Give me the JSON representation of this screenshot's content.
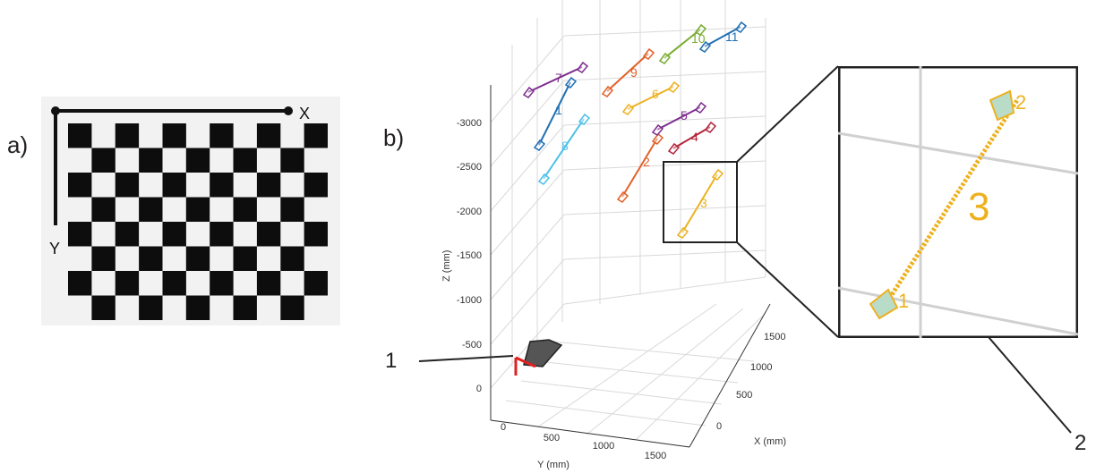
{
  "panel_a": {
    "label": "a)",
    "axis_x_label": "X",
    "axis_y_label": "Y",
    "board": {
      "rows": 8,
      "cols": 11,
      "first_square_dark": true
    }
  },
  "panel_b": {
    "label": "b)",
    "axes": {
      "z_label": "Z (mm)",
      "y_label": "Y (mm)",
      "x_label": "X (mm)",
      "z_ticks": [
        "-3000",
        "-2500",
        "-2000",
        "-1500",
        "-1000",
        "-500",
        "0"
      ],
      "y_ticks": [
        "0",
        "500",
        "1000",
        "1500"
      ],
      "x_ticks": [
        "0",
        "500",
        "1000",
        "1500"
      ]
    },
    "cameras": [
      {
        "id": "1",
        "color": "#1f6fb4"
      },
      {
        "id": "2",
        "color": "#e2612a"
      },
      {
        "id": "3",
        "color": "#edb11f"
      },
      {
        "id": "4",
        "color": "#b3243a"
      },
      {
        "id": "5",
        "color": "#7e2f8e"
      },
      {
        "id": "6",
        "color": "#edb11f"
      },
      {
        "id": "7",
        "color": "#7e2f8e"
      },
      {
        "id": "8",
        "color": "#4cc0e8"
      },
      {
        "id": "9",
        "color": "#e2612a"
      },
      {
        "id": "10",
        "color": "#77ac30"
      },
      {
        "id": "11",
        "color": "#1f6fb4"
      }
    ],
    "zoom": {
      "camera_id": "3",
      "start_label": "1",
      "end_label": "2",
      "color": "#edb11f"
    }
  },
  "callouts": {
    "callout_1": "1",
    "callout_2": "2"
  }
}
